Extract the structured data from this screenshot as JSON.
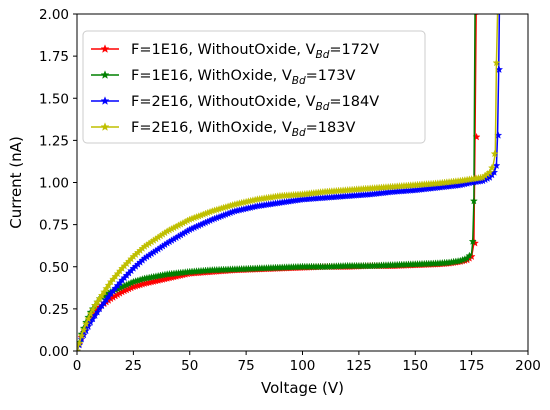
{
  "chart_data": {
    "type": "line",
    "title": "",
    "xlabel": "Voltage (V)",
    "ylabel": "Current (nA)",
    "xlim": [
      0,
      200
    ],
    "ylim": [
      0.0,
      2.0
    ],
    "xticks": [
      0,
      25,
      50,
      75,
      100,
      125,
      150,
      175,
      200
    ],
    "yticks": [
      0.0,
      0.25,
      0.5,
      0.75,
      1.0,
      1.25,
      1.5,
      1.75,
      2.0
    ],
    "xtick_labels": [
      "0",
      "25",
      "50",
      "75",
      "100",
      "125",
      "150",
      "175",
      "200"
    ],
    "ytick_labels": [
      "0.00",
      "0.25",
      "0.50",
      "0.75",
      "1.00",
      "1.25",
      "1.50",
      "1.75",
      "2.00"
    ],
    "grid": false,
    "legend_position": "top-left",
    "marker": "star",
    "series": [
      {
        "name": "F=1E16, WithoutOxide, V_Bd=172V",
        "legend_main": "F=1E16, WithoutOxide, V",
        "legend_sub": "Bd",
        "legend_tail": "=172V",
        "color": "#ff0000",
        "x": [
          0,
          2,
          4,
          6,
          8,
          10,
          15,
          20,
          25,
          30,
          40,
          50,
          60,
          70,
          80,
          90,
          100,
          110,
          120,
          130,
          140,
          150,
          160,
          165,
          170,
          173,
          175,
          176,
          176.5,
          177,
          177.5,
          178
        ],
        "y": [
          0.0,
          0.08,
          0.14,
          0.19,
          0.23,
          0.26,
          0.31,
          0.35,
          0.38,
          0.4,
          0.43,
          0.46,
          0.47,
          0.48,
          0.485,
          0.49,
          0.495,
          0.5,
          0.5,
          0.505,
          0.505,
          0.51,
          0.515,
          0.52,
          0.53,
          0.54,
          0.56,
          0.64,
          1.27,
          2.0,
          2.0,
          2.0
        ],
        "markers": [
          [
            176.5,
            0.64
          ],
          [
            177.2,
            1.27
          ]
        ]
      },
      {
        "name": "F=1E16, WithOxide, V_Bd=173V",
        "legend_main": "F=1E16, WithOxide, V",
        "legend_sub": "Bd",
        "legend_tail": "=173V",
        "color": "#008000",
        "x": [
          0,
          2,
          4,
          6,
          8,
          10,
          15,
          20,
          25,
          30,
          40,
          50,
          60,
          70,
          80,
          90,
          100,
          110,
          120,
          130,
          140,
          150,
          160,
          165,
          170,
          173,
          175,
          175.5,
          176,
          176.5,
          177
        ],
        "y": [
          0.0,
          0.1,
          0.17,
          0.23,
          0.27,
          0.31,
          0.35,
          0.38,
          0.41,
          0.43,
          0.455,
          0.47,
          0.48,
          0.485,
          0.49,
          0.495,
          0.5,
          0.5,
          0.505,
          0.505,
          0.51,
          0.515,
          0.52,
          0.525,
          0.535,
          0.55,
          0.58,
          0.65,
          0.89,
          2.0,
          2.0
        ],
        "markers": [
          [
            175.5,
            0.65
          ],
          [
            176.0,
            0.89
          ]
        ]
      },
      {
        "name": "F=2E16, WithoutOxide, V_Bd=184V",
        "legend_main": "F=2E16, WithoutOxide, V",
        "legend_sub": "Bd",
        "legend_tail": "=184V",
        "color": "#0000ff",
        "x": [
          0,
          2,
          4,
          6,
          8,
          10,
          15,
          20,
          25,
          30,
          40,
          50,
          60,
          70,
          80,
          90,
          100,
          110,
          120,
          130,
          140,
          150,
          160,
          170,
          175,
          180,
          183,
          185,
          186,
          186.5,
          187,
          187.3
        ],
        "y": [
          0.0,
          0.07,
          0.12,
          0.17,
          0.21,
          0.25,
          0.34,
          0.42,
          0.49,
          0.55,
          0.64,
          0.72,
          0.78,
          0.83,
          0.86,
          0.88,
          0.9,
          0.91,
          0.92,
          0.93,
          0.945,
          0.955,
          0.97,
          0.985,
          1.0,
          1.01,
          1.03,
          1.06,
          1.1,
          1.28,
          1.67,
          2.0
        ],
        "markers": [
          [
            186.0,
            1.1
          ],
          [
            186.8,
            1.28
          ],
          [
            187.2,
            1.67
          ]
        ]
      },
      {
        "name": "F=2E16, WithOxide, V_Bd=183V",
        "legend_main": "F=2E16, WithOxide, V",
        "legend_sub": "Bd",
        "legend_tail": "=183V",
        "color": "#bfbf00",
        "x": [
          0,
          2,
          4,
          6,
          8,
          10,
          15,
          20,
          25,
          30,
          40,
          50,
          60,
          70,
          80,
          90,
          100,
          110,
          120,
          130,
          140,
          150,
          160,
          170,
          175,
          180,
          183,
          184.5,
          185.5,
          186,
          186.5
        ],
        "y": [
          0.0,
          0.09,
          0.16,
          0.22,
          0.27,
          0.31,
          0.41,
          0.49,
          0.56,
          0.62,
          0.71,
          0.78,
          0.83,
          0.87,
          0.9,
          0.92,
          0.93,
          0.945,
          0.955,
          0.965,
          0.975,
          0.985,
          0.995,
          1.01,
          1.02,
          1.03,
          1.06,
          1.1,
          1.17,
          1.71,
          2.0
        ],
        "markers": [
          [
            185.2,
            1.17
          ],
          [
            186.0,
            1.71
          ]
        ]
      }
    ]
  }
}
